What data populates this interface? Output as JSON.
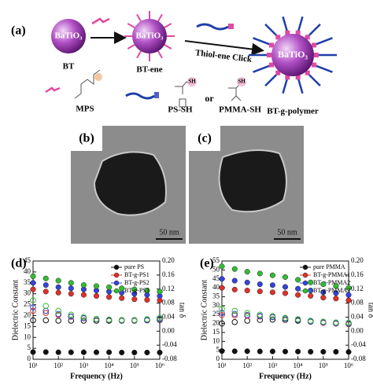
{
  "figure": {
    "panel_a": "(a)",
    "panel_b": "(b)",
    "panel_c": "(c)",
    "spheres": [
      "BaTiO₃",
      "BaTiO₃",
      "BaTiO₃"
    ],
    "labels": {
      "bt": "BT",
      "bt_ene": "BT-ene",
      "click": "Thiol-ene Click",
      "bt_polymer": "BT-g-polymer",
      "mps": "MPS",
      "ps_sh": "PS-SH",
      "or": "or",
      "pmma_sh": "PMMA-SH",
      "sh": [
        "SH",
        "SH"
      ]
    },
    "scale_bars": [
      "50 nm",
      "50 nm"
    ]
  },
  "chart_data": [
    {
      "type": "scatter",
      "panel": "(d)",
      "x_label": "Frequency (Hz)",
      "y_label": "Dielectric Constant",
      "y2_label": "tan δ",
      "log_x": true,
      "legend": "upper right",
      "x": [
        10,
        32,
        100,
        316,
        1000,
        3162,
        10000,
        31623,
        100000,
        316228,
        1000000
      ],
      "xlim": [
        10,
        1000000
      ],
      "xticks": [
        {
          "value": 10,
          "label": "10¹"
        },
        {
          "value": 100,
          "label": "10²"
        },
        {
          "value": 1000,
          "label": "10³"
        },
        {
          "value": 10000,
          "label": "10⁴"
        },
        {
          "value": 100000,
          "label": "10⁵"
        },
        {
          "value": 1000000,
          "label": "10⁶"
        }
      ],
      "ylim": [
        0,
        45
      ],
      "yticks": [
        0,
        5,
        10,
        15,
        20,
        25,
        30,
        35,
        40,
        45
      ],
      "y2lim": [
        -0.08,
        0.2
      ],
      "y2ticks": [
        -0.08,
        -0.04,
        {
          "value": 0,
          "label": "0.00"
        },
        0.04,
        0.08,
        0.12,
        0.16,
        {
          "value": 0.2,
          "label": "0.20"
        }
      ],
      "series": [
        {
          "name": "pure PS",
          "color": "#111111",
          "values": [
            3.3,
            3.3,
            3.2,
            3.2,
            3.2,
            3.2,
            3.2,
            3.1,
            3.1,
            3.1,
            3.1
          ],
          "tan_values": [
            0.031,
            0.031,
            0.03,
            0.03,
            0.03,
            0.03,
            0.03,
            0.03,
            0.03,
            0.031,
            0.032
          ],
          "axis": "y2"
        },
        {
          "name": "BT-g-PS1",
          "color": "#e0302a",
          "values": [
            32,
            31,
            30.5,
            30,
            29.5,
            29,
            28.5,
            28,
            27.5,
            27.2,
            27
          ],
          "tan_values": [
            0.058,
            0.052,
            0.046,
            0.041,
            0.037,
            0.034,
            0.032,
            0.031,
            0.031,
            0.032,
            0.034
          ],
          "axis": "y2"
        },
        {
          "name": "BT-g-PS2",
          "color": "#3344dd",
          "values": [
            35,
            34,
            33,
            32.5,
            32,
            31.5,
            31,
            30.5,
            30,
            29.5,
            29
          ],
          "tan_values": [
            0.068,
            0.058,
            0.049,
            0.042,
            0.037,
            0.034,
            0.032,
            0.031,
            0.031,
            0.032,
            0.035
          ],
          "axis": "y2"
        },
        {
          "name": "BT-g-PS3",
          "color": "#33bb33",
          "values": [
            38,
            37,
            36,
            35,
            34,
            33.5,
            33,
            32.5,
            32,
            31.5,
            31
          ],
          "tan_values": [
            0.088,
            0.072,
            0.058,
            0.047,
            0.04,
            0.035,
            0.033,
            0.032,
            0.032,
            0.034,
            0.038
          ],
          "axis": "y2"
        }
      ]
    },
    {
      "type": "scatter",
      "panel": "(e)",
      "x_label": "Frequency (Hz)",
      "y_label": "Dielectric Constant",
      "y2_label": "tan δ",
      "log_x": true,
      "legend": "upper right",
      "x": [
        10,
        32,
        100,
        316,
        1000,
        3162,
        10000,
        31623,
        100000,
        316228,
        1000000
      ],
      "xlim": [
        10,
        1000000
      ],
      "xticks": [
        {
          "value": 10,
          "label": "10¹"
        },
        {
          "value": 100,
          "label": "10²"
        },
        {
          "value": 1000,
          "label": "10³"
        },
        {
          "value": 10000,
          "label": "10⁴"
        },
        {
          "value": 100000,
          "label": "10⁵"
        },
        {
          "value": 1000000,
          "label": "10⁶"
        }
      ],
      "ylim": [
        0,
        55
      ],
      "yticks": [
        0,
        5,
        10,
        15,
        20,
        25,
        30,
        35,
        40,
        45,
        50,
        55
      ],
      "y2lim": [
        -0.08,
        0.2
      ],
      "y2ticks": [
        -0.08,
        -0.04,
        {
          "value": 0,
          "label": "0.00"
        },
        0.04,
        0.08,
        0.12,
        0.16,
        {
          "value": 0.2,
          "label": "0.20"
        }
      ],
      "series": [
        {
          "name": "pure PMMA",
          "color": "#111111",
          "values": [
            4.6,
            4.5,
            4.5,
            4.4,
            4.4,
            4.3,
            4.3,
            4.2,
            4.2,
            4.2,
            4.1
          ],
          "tan_values": [
            0.022,
            0.026,
            0.03,
            0.032,
            0.033,
            0.032,
            0.03,
            0.027,
            0.024,
            0.022,
            0.02
          ],
          "axis": "y2"
        },
        {
          "name": "BT-g-PMMA1",
          "color": "#e0302a",
          "values": [
            40,
            39,
            38.5,
            38,
            37.5,
            37,
            36,
            35.5,
            34.5,
            34,
            33
          ],
          "tan_values": [
            0.046,
            0.045,
            0.044,
            0.042,
            0.04,
            0.036,
            0.032,
            0.028,
            0.024,
            0.022,
            0.021
          ],
          "axis": "y2"
        },
        {
          "name": "BT-g-PMMA2",
          "color": "#3344dd",
          "values": [
            45,
            44,
            43,
            42,
            41.5,
            40.5,
            39.5,
            38.5,
            37.5,
            37,
            36
          ],
          "tan_values": [
            0.052,
            0.049,
            0.046,
            0.043,
            0.04,
            0.036,
            0.032,
            0.028,
            0.025,
            0.023,
            0.022
          ],
          "axis": "y2"
        },
        {
          "name": "BT-g-PMMA3",
          "color": "#33bb33",
          "values": [
            52,
            50.5,
            49,
            48,
            47,
            46,
            44.5,
            43,
            42,
            41,
            40
          ],
          "tan_values": [
            0.064,
            0.058,
            0.052,
            0.047,
            0.043,
            0.038,
            0.034,
            0.03,
            0.027,
            0.025,
            0.024
          ],
          "axis": "y2"
        }
      ]
    }
  ]
}
